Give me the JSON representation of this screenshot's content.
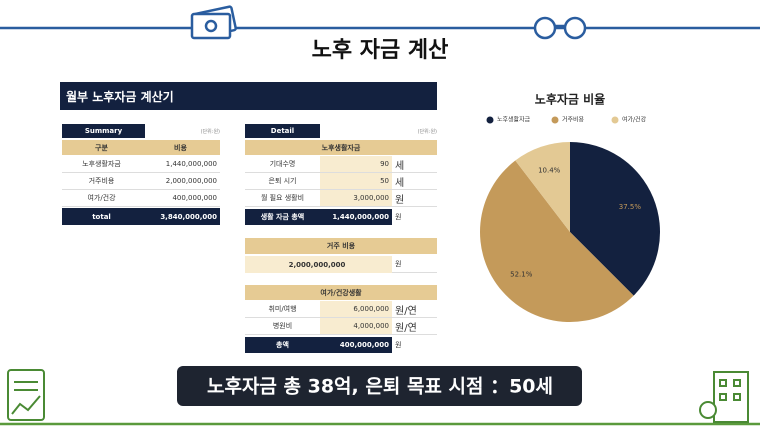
{
  "title": "노후 자금 계산",
  "panel_title": "월부 노후자금 계산기",
  "summary": {
    "header": "Summary",
    "unit": "(단위:원)",
    "columns": [
      "구분",
      "비용"
    ],
    "rows": [
      [
        "노후생활자금",
        "1,440,000,000"
      ],
      [
        "거주비용",
        "2,000,000,000"
      ],
      [
        "여가/건강",
        "400,000,000"
      ]
    ],
    "total": [
      "total",
      "3,840,000,000"
    ]
  },
  "detail": {
    "header": "Detail",
    "unit": "(단위:원)",
    "living": {
      "title": "노후생활자금",
      "rows": [
        [
          "기대수명",
          "90",
          "세"
        ],
        [
          "은퇴 시기",
          "50",
          "세"
        ],
        [
          "월 필요 생활비",
          "3,000,000",
          "원"
        ]
      ],
      "total": [
        "생활 자금 총액",
        "1,440,000,000",
        "원"
      ]
    },
    "housing": {
      "title": "거주 비용",
      "value": "2,000,000,000",
      "unit": "원"
    },
    "leisure": {
      "title": "여가/건강생활",
      "rows": [
        [
          "취미/여행",
          "6,000,000",
          "원/연"
        ],
        [
          "병원비",
          "4,000,000",
          "원/연"
        ]
      ],
      "total": [
        "총액",
        "400,000,000",
        "원"
      ]
    }
  },
  "chart_data": {
    "type": "pie",
    "title": "노후자금 비율",
    "categories": [
      "노후생활자금",
      "거주비용",
      "여가/건강"
    ],
    "values": [
      37.5,
      52.1,
      10.4
    ],
    "value_labels": [
      "37.5%",
      "52.1%",
      "10.4%"
    ],
    "colors": [
      "#13213f",
      "#c49a5a",
      "#e3c994"
    ]
  },
  "banner": "노후자금 총 38억, 은퇴 목표 시점 ：50세"
}
